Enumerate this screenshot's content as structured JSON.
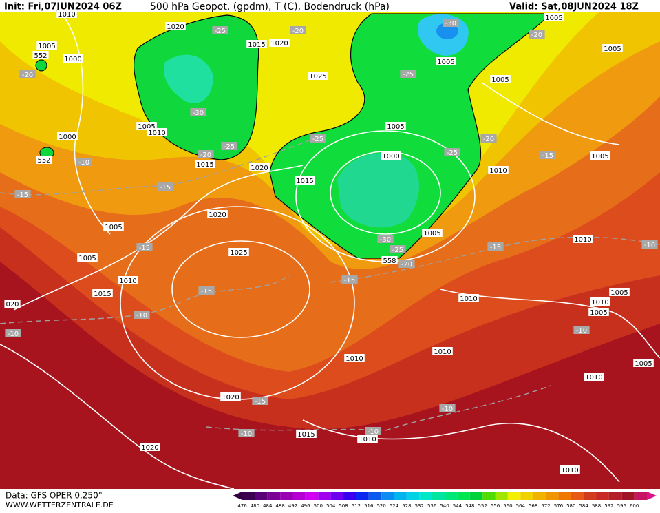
{
  "header": {
    "init": "Init: Fri,07JUN2024 06Z",
    "title": "500 hPa Geopot. (gpdm), T (C), Bodendruck (hPa)",
    "valid": "Valid: Sat,08JUN2024 18Z"
  },
  "footer": {
    "data": "Data: GFS OPER 0.250°",
    "site": "WWW.WETTERZENTRALE.DE"
  },
  "legend": {
    "levels": [
      "476",
      "480",
      "484",
      "488",
      "492",
      "496",
      "500",
      "504",
      "508",
      "512",
      "516",
      "520",
      "524",
      "528",
      "532",
      "536",
      "540",
      "544",
      "548",
      "552",
      "556",
      "560",
      "564",
      "568",
      "572",
      "576",
      "580",
      "584",
      "588",
      "592",
      "596",
      "600"
    ]
  },
  "isobar_labels": [
    "1010",
    "1020",
    "1015",
    "1020",
    "1005",
    "1000",
    "552",
    "1025",
    "1005",
    "1005",
    "1005",
    "1005",
    "1005",
    "1010",
    "1000",
    "1005",
    "1000",
    "1015",
    "1020",
    "1015",
    "1010",
    "1005",
    "1020",
    "1005",
    "1005",
    "1025",
    "1005",
    "1010",
    "1015",
    "1010",
    "1010",
    "1010",
    "1005",
    "1005",
    "1005",
    "1010",
    "1010",
    "1010",
    "1020",
    "1015",
    "1010",
    "1020",
    "1010",
    "020",
    "552",
    "558"
  ],
  "temperature_labels": [
    "-25",
    "-20",
    "-20",
    "-30",
    "-20",
    "-25",
    "-25",
    "-25",
    "-30",
    "-20",
    "-25",
    "-20",
    "-15",
    "-10",
    "-15",
    "-15",
    "-15",
    "-30",
    "-25",
    "-20",
    "-15",
    "-15",
    "-15",
    "-10",
    "-10",
    "-10",
    "-15",
    "-10",
    "-10",
    "-10",
    "-10"
  ]
}
